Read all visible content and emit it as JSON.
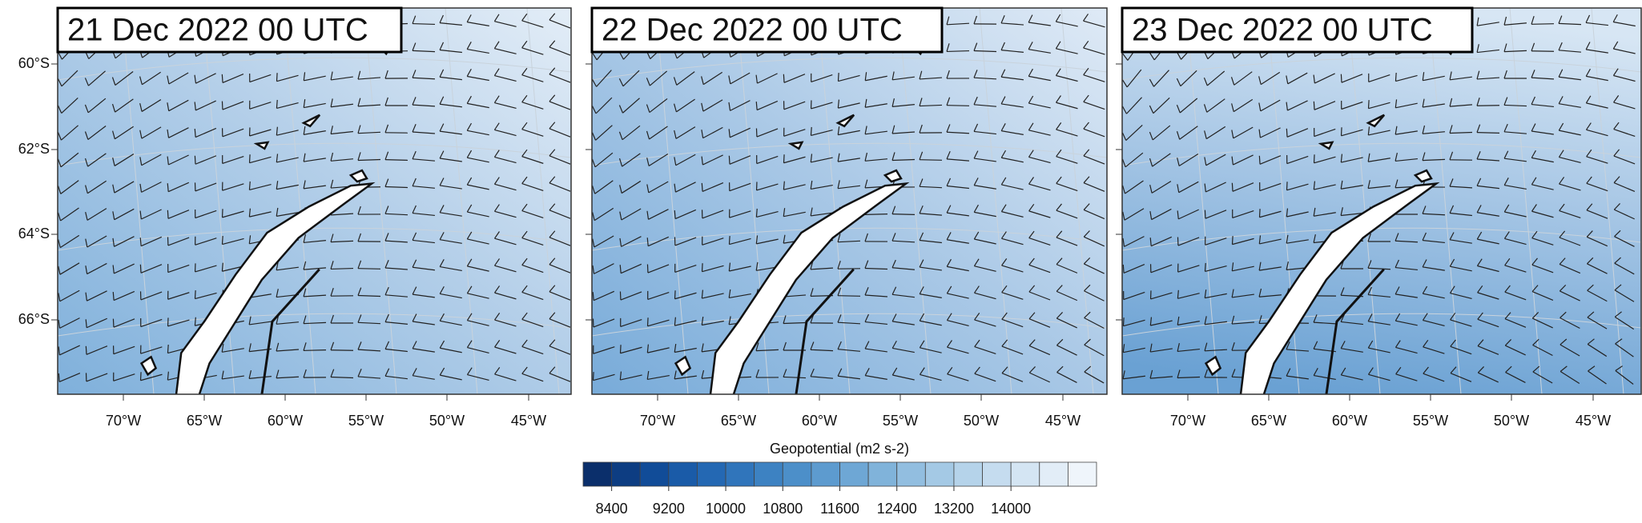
{
  "panels": [
    {
      "title": "21 Dec 2022 00 UTC"
    },
    {
      "title": "22 Dec 2022 00 UTC"
    },
    {
      "title": "23 Dec 2022 00 UTC"
    }
  ],
  "lat_labels": [
    "60°S",
    "62°S",
    "64°S",
    "66°S"
  ],
  "lon_labels": [
    "70°W",
    "65°W",
    "60°W",
    "55°W",
    "50°W",
    "45°W"
  ],
  "colorbar": {
    "title": "Geopotential  (m2 s-2)",
    "clim": [
      8000,
      15200
    ],
    "ticks": [
      8400,
      9200,
      10000,
      10800,
      11600,
      12400,
      13200,
      14000
    ],
    "colors": [
      "#0b2f6b",
      "#0d3d82",
      "#114c98",
      "#1a5ba8",
      "#2468b3",
      "#3075bb",
      "#3d82c2",
      "#4c8fc9",
      "#5d9bcf",
      "#6ea7d5",
      "#80b3da",
      "#92bee0",
      "#a4c9e5",
      "#b5d3ea",
      "#c5dcef",
      "#d4e5f3",
      "#e2edf7",
      "#eff5fb"
    ]
  }
}
